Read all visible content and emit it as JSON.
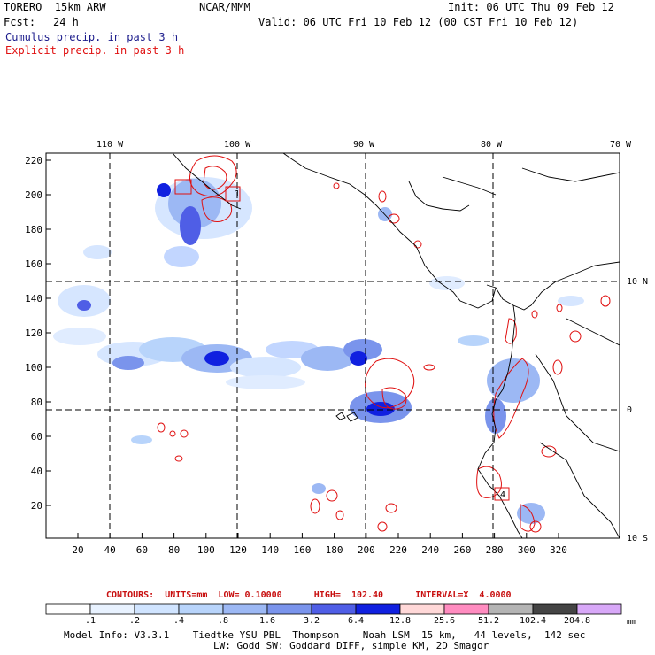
{
  "header": {
    "model": "TORERO  15km ARW",
    "org": "NCAR/MMM",
    "init": "Init: 06 UTC Thu 09 Feb 12",
    "fcst_label": "Fcst:",
    "fcst_value": "24 h",
    "valid": "Valid: 06 UTC Fri 10 Feb 12 (00 CST Fri 10 Feb 12)",
    "legend_cumulus": "Cumulus precip. in past 3 h",
    "legend_explicit": "Explicit precip. in past 3 h"
  },
  "map": {
    "top_lon_labels": [
      "110 W",
      "100 W",
      "90 W",
      "80 W",
      "70 W"
    ],
    "right_lat_labels": [
      "10 N",
      "0",
      "10 S"
    ],
    "left_ticks": [
      "220",
      "200",
      "180",
      "160",
      "140",
      "120",
      "100",
      "80",
      "60",
      "40",
      "20"
    ],
    "bottom_ticks": [
      "20",
      "40",
      "60",
      "80",
      "100",
      "120",
      "140",
      "160",
      "180",
      "200",
      "220",
      "240",
      "260",
      "280",
      "300",
      "320"
    ],
    "box_labels": [
      "1",
      "4"
    ]
  },
  "contours": {
    "text": "CONTOURS:  UNITS=mm  LOW= 0.10000      HIGH=  102.40      INTERVAL=X  4.0000"
  },
  "colorbar": {
    "labels": [
      ".1",
      ".2",
      ".4",
      ".8",
      "1.6",
      "3.2",
      "6.4",
      "12.8",
      "25.6",
      "51.2",
      "102.4",
      "204.8"
    ],
    "unit": "mm",
    "colors": [
      "#ffffff",
      "#e8f2ff",
      "#d0e4ff",
      "#b8d4fb",
      "#9cb8f4",
      "#7a94ec",
      "#4f5ee6",
      "#1020e0",
      "#ffd8d8",
      "#ff8cc0",
      "#b4b4b4",
      "#444444",
      "#d8a8f8"
    ]
  },
  "footer": {
    "line1": "Model Info: V3.3.1    Tiedtke YSU PBL  Thompson    Noah LSM  15 km,   44 levels,  142 sec",
    "line2": "LW: Godd SW: Goddard DIFF, simple KM, 2D Smagor"
  }
}
